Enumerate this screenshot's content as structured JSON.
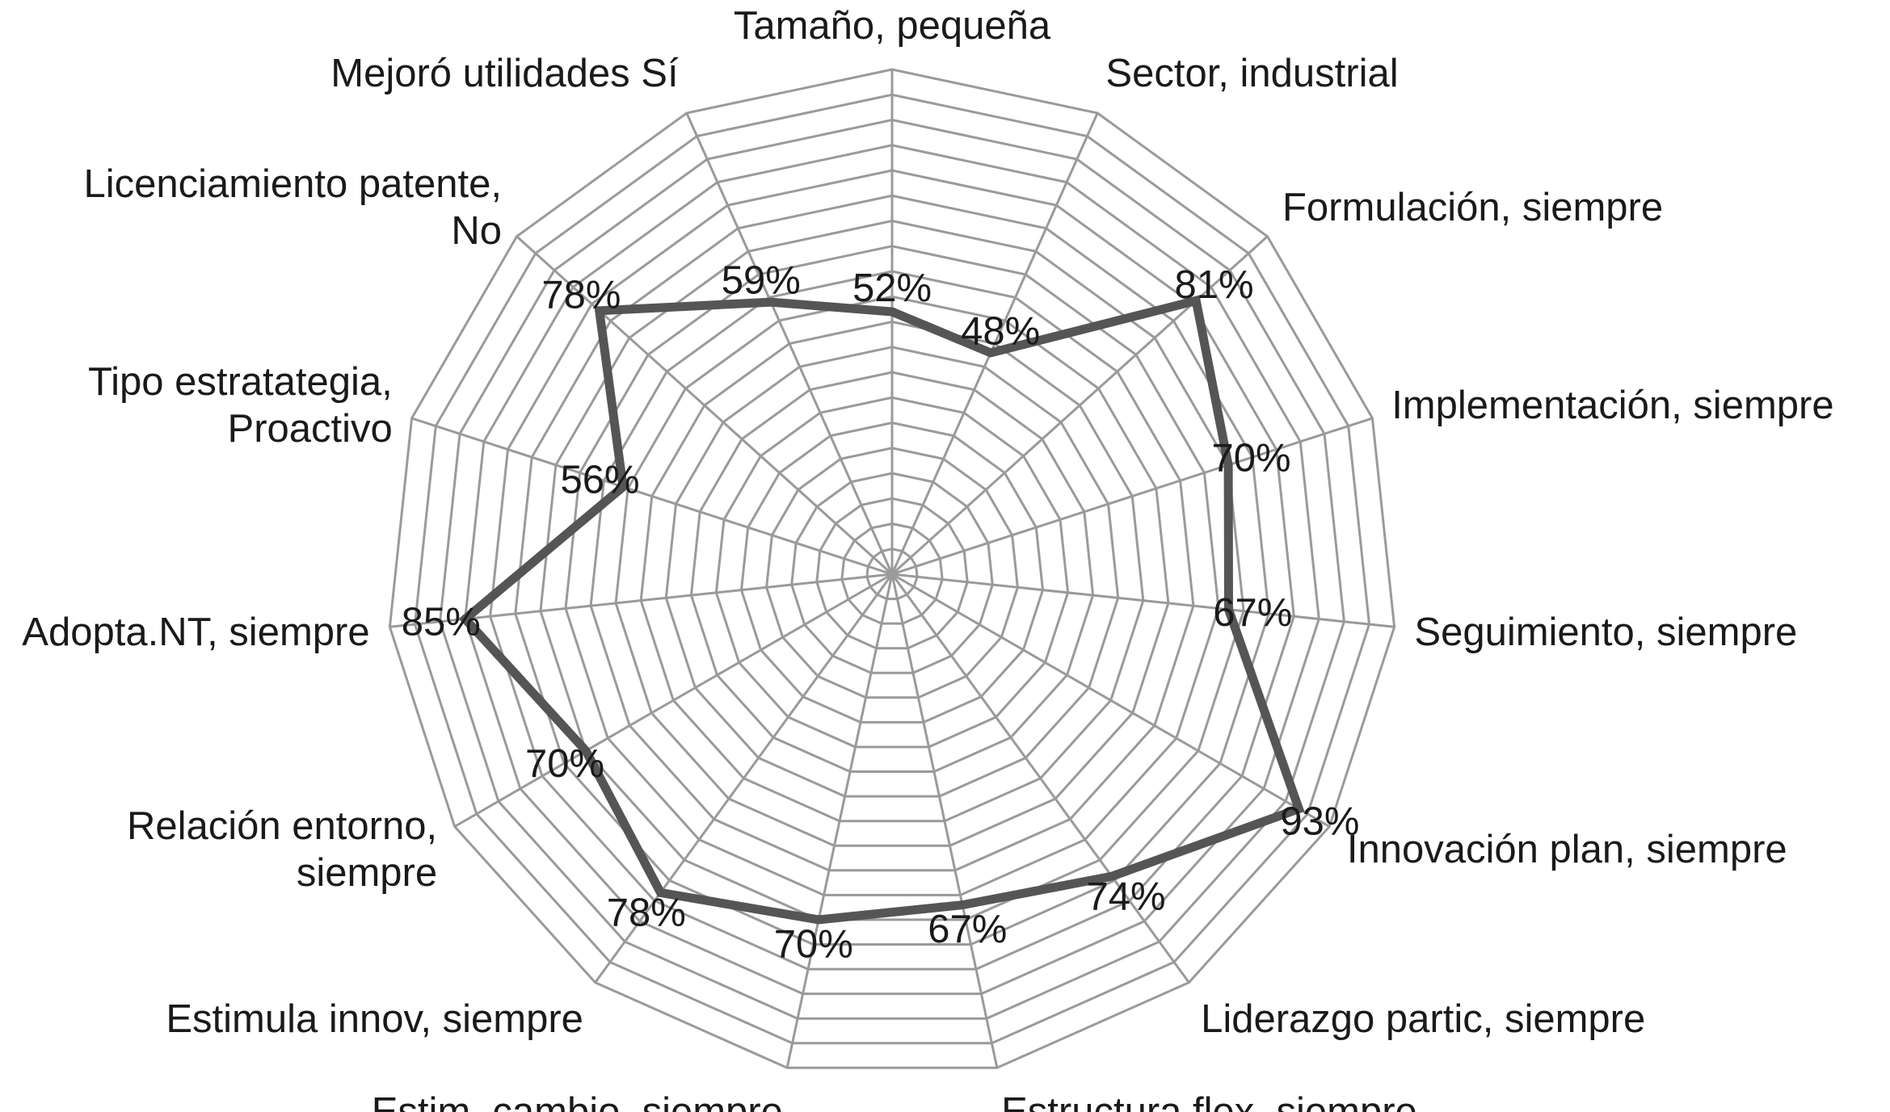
{
  "chart_data": {
    "type": "radar",
    "title": "",
    "categories": [
      "Tamaño, pequeña",
      "Sector, industrial",
      "Formulación, siempre",
      "Implementación, siempre",
      "Seguimiento, siempre",
      "Innovación plan, siempre",
      "Liderazgo partic, siempre",
      "Estructura flex, siempre",
      "Estim. cambio, siempre",
      "Estimula innov, siempre",
      "Relación entorno, siempre",
      "Adopta.NT, siempre",
      "Tipo estratategia, Proactivo",
      "Licenciamiento patente, No",
      "Mejoró utilidades Sí"
    ],
    "values": [
      52,
      48,
      81,
      70,
      67,
      93,
      74,
      67,
      70,
      78,
      70,
      85,
      56,
      78,
      59
    ],
    "value_labels": [
      "52%",
      "48%",
      "81%",
      "70%",
      "67%",
      "93%",
      "74%",
      "67%",
      "70%",
      "78%",
      "70%",
      "85%",
      "56%",
      "78%",
      "59%"
    ],
    "rmin": 0,
    "rmax": 100,
    "ring_step": 5,
    "grid": true,
    "legend": "none",
    "line_color": "#555555",
    "grid_color": "#9a9a9a"
  }
}
